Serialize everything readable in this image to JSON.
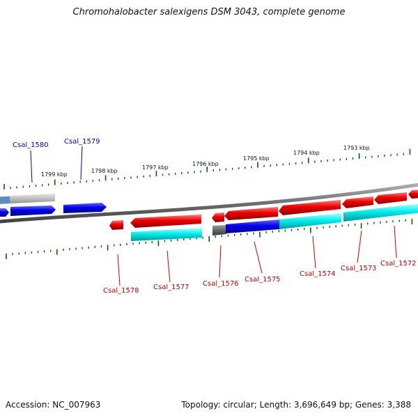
{
  "title": "Chromohalobacter salexigens DSM 3043, complete genome",
  "footer": {
    "accession": "Accession: NC_007963",
    "summary": "Topology: circular; Length: 3,696,649 bp; Genes: 3,388"
  },
  "colors": {
    "forward_gene": "#0000ee",
    "reverse_gene": "#ee0000",
    "forward_shadow": "#bbbbbb",
    "reverse_shadow": "#00eeee",
    "backbone": "#777777",
    "ticks": "#006600",
    "forward_label": "#0000cc",
    "reverse_label": "#cc0000"
  },
  "scale_labels": [
    {
      "id": "1799",
      "text": "1799 kbp"
    },
    {
      "id": "1798",
      "text": "1798 kbp"
    },
    {
      "id": "1797",
      "text": "1797 kbp"
    },
    {
      "id": "1796",
      "text": "1796 kbp"
    },
    {
      "id": "1795",
      "text": "1795 kbp"
    },
    {
      "id": "1794",
      "text": "1794 kbp"
    },
    {
      "id": "1793",
      "text": "1793 kbp"
    }
  ],
  "genes": [
    {
      "id": "Csal_1580",
      "label": "Csal_1580",
      "strand": "forward"
    },
    {
      "id": "Csal_1579",
      "label": "Csal_1579",
      "strand": "forward"
    },
    {
      "id": "Csal_1578",
      "label": "Csal_1578",
      "strand": "reverse"
    },
    {
      "id": "Csal_1577",
      "label": "Csal_1577",
      "strand": "reverse"
    },
    {
      "id": "Csal_1576",
      "label": "Csal_1576",
      "strand": "reverse"
    },
    {
      "id": "Csal_1575",
      "label": "Csal_1575",
      "strand": "reverse"
    },
    {
      "id": "Csal_1574",
      "label": "Csal_1574",
      "strand": "reverse"
    },
    {
      "id": "Csal_1573",
      "label": "Csal_1573",
      "strand": "reverse"
    },
    {
      "id": "Csal_1572",
      "label": "Csal_1572",
      "strand": "reverse"
    }
  ]
}
